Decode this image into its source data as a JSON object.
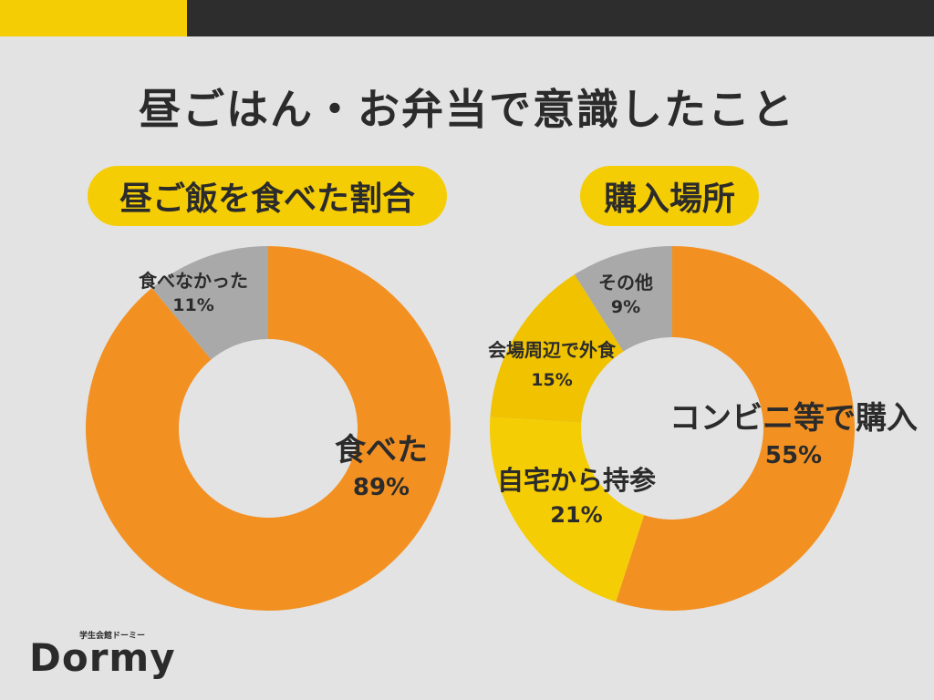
{
  "title": "昼ごはん・お弁当で意識したこと",
  "logo": {
    "text": "Dormy",
    "subtitle": "学生会館ドーミー"
  },
  "colors": {
    "background": "#e3e3e3",
    "topbar": "#2d2d2d",
    "accent": "#f5cd05"
  },
  "chart_data": [
    {
      "type": "pie",
      "variant": "donut",
      "title": "昼ご飯を食べた割合",
      "slices": [
        {
          "label": "食べた",
          "value": 89,
          "value_label": "89%",
          "color": "#f29122"
        },
        {
          "label": "食べなかった",
          "value": 11,
          "value_label": "11%",
          "color": "#a9a9a9"
        }
      ]
    },
    {
      "type": "pie",
      "variant": "donut",
      "title": "購入場所",
      "slices": [
        {
          "label": "コンビニ等で購入",
          "value": 55,
          "value_label": "55%",
          "color": "#f29122"
        },
        {
          "label": "自宅から持参",
          "value": 21,
          "value_label": "21%",
          "color": "#f5cd05"
        },
        {
          "label": "会場周辺で外食",
          "value": 15,
          "value_label": "15%",
          "color": "#f0c200"
        },
        {
          "label": "その他",
          "value": 9,
          "value_label": "9%",
          "color": "#a9a9a9"
        }
      ]
    }
  ]
}
